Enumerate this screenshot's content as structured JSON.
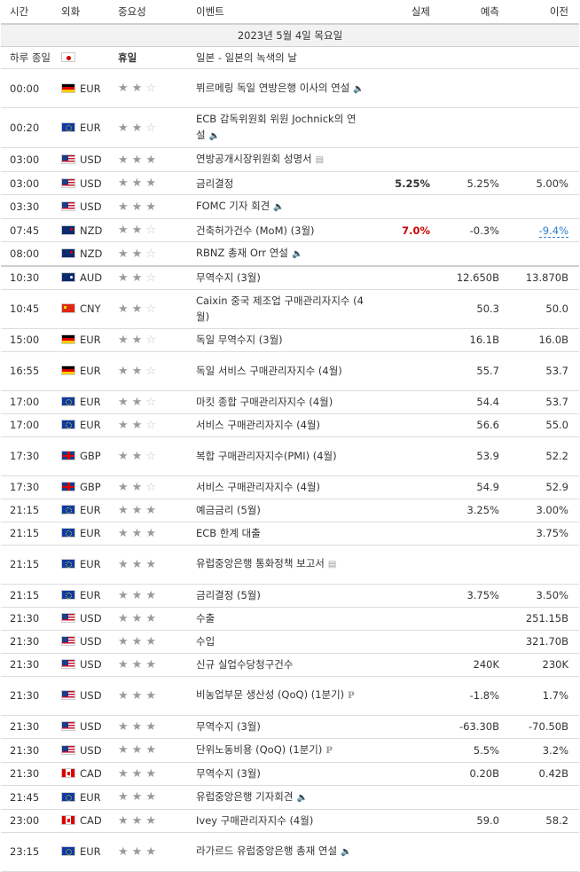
{
  "headers": {
    "time": "시간",
    "currency": "외화",
    "importance": "중요성",
    "event": "이벤트",
    "actual": "실제",
    "forecast": "예측",
    "previous": "이전"
  },
  "date_label": "2023년 5월 4일 목요일",
  "rows": [
    {
      "time": "하루 종일",
      "flag": "jp",
      "currency": "",
      "stars": 0,
      "holiday": "휴일",
      "event": "일본 - 일본의 녹색의 날",
      "icon": "",
      "actual": "",
      "actual_class": "",
      "forecast": "",
      "previous": "",
      "prev_class": "",
      "h": 25
    },
    {
      "time": "00:00",
      "flag": "de",
      "currency": "EUR",
      "stars": 2,
      "holiday": "",
      "event": "뷔르메링 독일 연방은행 이사의 연설",
      "icon": "speaker-icon",
      "actual": "",
      "actual_class": "",
      "forecast": "",
      "previous": "",
      "prev_class": "",
      "h": 44
    },
    {
      "time": "00:20",
      "flag": "eu",
      "currency": "EUR",
      "stars": 2,
      "holiday": "",
      "event": "ECB 감독위원회 위원 Jochnick의 연설",
      "icon": "speaker-icon",
      "actual": "",
      "actual_class": "",
      "forecast": "",
      "previous": "",
      "prev_class": "",
      "h": 44
    },
    {
      "time": "03:00",
      "flag": "us",
      "currency": "USD",
      "stars": 3,
      "holiday": "",
      "event": "연방공개시장위원회 성명서",
      "icon": "document-icon",
      "actual": "",
      "actual_class": "",
      "forecast": "",
      "previous": "",
      "prev_class": "",
      "h": 26
    },
    {
      "time": "03:00",
      "flag": "us",
      "currency": "USD",
      "stars": 3,
      "holiday": "",
      "event": "금리결정",
      "icon": "",
      "actual": "5.25%",
      "actual_class": "",
      "forecast": "5.25%",
      "previous": "5.00%",
      "prev_class": "",
      "h": 26
    },
    {
      "time": "03:30",
      "flag": "us",
      "currency": "USD",
      "stars": 3,
      "holiday": "",
      "event": "FOMC 기자 회견",
      "icon": "speaker-icon",
      "actual": "",
      "actual_class": "",
      "forecast": "",
      "previous": "",
      "prev_class": "",
      "h": 26
    },
    {
      "time": "07:45",
      "flag": "nz",
      "currency": "NZD",
      "stars": 2,
      "holiday": "",
      "event": "건축허가건수 (MoM) (3월)",
      "icon": "",
      "actual": "7.0%",
      "actual_class": "neg",
      "forecast": "-0.3%",
      "previous": "-9.4%",
      "prev_class": "prevrev",
      "h": 26
    },
    {
      "time": "08:00",
      "flag": "nz",
      "currency": "NZD",
      "stars": 2,
      "holiday": "",
      "event": "RBNZ 총재 Orr 연설",
      "icon": "speaker-icon",
      "actual": "",
      "actual_class": "",
      "forecast": "",
      "previous": "",
      "prev_class": "",
      "h": 26
    },
    {
      "time": "10:30",
      "flag": "au",
      "currency": "AUD",
      "stars": 2,
      "holiday": "",
      "event": "무역수지 (3월)",
      "icon": "",
      "actual": "",
      "actual_class": "",
      "forecast": "12.650B",
      "previous": "13.870B",
      "prev_class": "",
      "h": 26,
      "sep": true
    },
    {
      "time": "10:45",
      "flag": "cn",
      "currency": "CNY",
      "stars": 2,
      "holiday": "",
      "event": "Caixin 중국 제조업 구매관리자지수 (4월)",
      "icon": "",
      "actual": "",
      "actual_class": "",
      "forecast": "50.3",
      "previous": "50.0",
      "prev_class": "",
      "h": 44
    },
    {
      "time": "15:00",
      "flag": "de",
      "currency": "EUR",
      "stars": 2,
      "holiday": "",
      "event": "독일 무역수지 (3월)",
      "icon": "",
      "actual": "",
      "actual_class": "",
      "forecast": "16.1B",
      "previous": "16.0B",
      "prev_class": "",
      "h": 26
    },
    {
      "time": "16:55",
      "flag": "de",
      "currency": "EUR",
      "stars": 2,
      "holiday": "",
      "event": "독일 서비스 구매관리자지수 (4월)",
      "icon": "",
      "actual": "",
      "actual_class": "",
      "forecast": "55.7",
      "previous": "53.7",
      "prev_class": "",
      "h": 44
    },
    {
      "time": "17:00",
      "flag": "eu",
      "currency": "EUR",
      "stars": 2,
      "holiday": "",
      "event": "마킷 종합 구매관리자지수 (4월)",
      "icon": "",
      "actual": "",
      "actual_class": "",
      "forecast": "54.4",
      "previous": "53.7",
      "prev_class": "",
      "h": 26
    },
    {
      "time": "17:00",
      "flag": "eu",
      "currency": "EUR",
      "stars": 2,
      "holiday": "",
      "event": "서비스 구매관리자지수 (4월)",
      "icon": "",
      "actual": "",
      "actual_class": "",
      "forecast": "56.6",
      "previous": "55.0",
      "prev_class": "",
      "h": 26
    },
    {
      "time": "17:30",
      "flag": "gb",
      "currency": "GBP",
      "stars": 2,
      "holiday": "",
      "event": "복합 구매관리자지수(PMI) (4월)",
      "icon": "",
      "actual": "",
      "actual_class": "",
      "forecast": "53.9",
      "previous": "52.2",
      "prev_class": "",
      "h": 44
    },
    {
      "time": "17:30",
      "flag": "gb",
      "currency": "GBP",
      "stars": 2,
      "holiday": "",
      "event": "서비스 구매관리자지수 (4월)",
      "icon": "",
      "actual": "",
      "actual_class": "",
      "forecast": "54.9",
      "previous": "52.9",
      "prev_class": "",
      "h": 26
    },
    {
      "time": "21:15",
      "flag": "eu",
      "currency": "EUR",
      "stars": 3,
      "holiday": "",
      "event": "예금금리 (5월)",
      "icon": "",
      "actual": "",
      "actual_class": "",
      "forecast": "3.25%",
      "previous": "3.00%",
      "prev_class": "",
      "h": 26
    },
    {
      "time": "21:15",
      "flag": "eu",
      "currency": "EUR",
      "stars": 3,
      "holiday": "",
      "event": "ECB 한계 대출",
      "icon": "",
      "actual": "",
      "actual_class": "",
      "forecast": "",
      "previous": "3.75%",
      "prev_class": "",
      "h": 26
    },
    {
      "time": "21:15",
      "flag": "eu",
      "currency": "EUR",
      "stars": 3,
      "holiday": "",
      "event": "유럽중앙은행 통화정책 보고서",
      "icon": "document-icon",
      "actual": "",
      "actual_class": "",
      "forecast": "",
      "previous": "",
      "prev_class": "",
      "h": 44
    },
    {
      "time": "21:15",
      "flag": "eu",
      "currency": "EUR",
      "stars": 3,
      "holiday": "",
      "event": "금리결정 (5월)",
      "icon": "",
      "actual": "",
      "actual_class": "",
      "forecast": "3.75%",
      "previous": "3.50%",
      "prev_class": "",
      "h": 26
    },
    {
      "time": "21:30",
      "flag": "us",
      "currency": "USD",
      "stars": 3,
      "holiday": "",
      "event": "수출",
      "icon": "",
      "actual": "",
      "actual_class": "",
      "forecast": "",
      "previous": "251.15B",
      "prev_class": "",
      "h": 26
    },
    {
      "time": "21:30",
      "flag": "us",
      "currency": "USD",
      "stars": 3,
      "holiday": "",
      "event": "수입",
      "icon": "",
      "actual": "",
      "actual_class": "",
      "forecast": "",
      "previous": "321.70B",
      "prev_class": "",
      "h": 26
    },
    {
      "time": "21:30",
      "flag": "us",
      "currency": "USD",
      "stars": 3,
      "holiday": "",
      "event": "신규 실업수당청구건수",
      "icon": "",
      "actual": "",
      "actual_class": "",
      "forecast": "240K",
      "previous": "230K",
      "prev_class": "",
      "h": 26
    },
    {
      "time": "21:30",
      "flag": "us",
      "currency": "USD",
      "stars": 3,
      "holiday": "",
      "event": "비농업부문 생산성 (QoQ) (1분기)",
      "icon": "preliminary-icon",
      "actual": "",
      "actual_class": "",
      "forecast": "-1.8%",
      "previous": "1.7%",
      "prev_class": "",
      "h": 44
    },
    {
      "time": "21:30",
      "flag": "us",
      "currency": "USD",
      "stars": 3,
      "holiday": "",
      "event": "무역수지 (3월)",
      "icon": "",
      "actual": "",
      "actual_class": "",
      "forecast": "-63.30B",
      "previous": "-70.50B",
      "prev_class": "",
      "h": 26
    },
    {
      "time": "21:30",
      "flag": "us",
      "currency": "USD",
      "stars": 3,
      "holiday": "",
      "event": "단위노동비용 (QoQ) (1분기)",
      "icon": "preliminary-icon",
      "actual": "",
      "actual_class": "",
      "forecast": "5.5%",
      "previous": "3.2%",
      "prev_class": "",
      "h": 26
    },
    {
      "time": "21:30",
      "flag": "ca",
      "currency": "CAD",
      "stars": 3,
      "holiday": "",
      "event": "무역수지 (3월)",
      "icon": "",
      "actual": "",
      "actual_class": "",
      "forecast": "0.20B",
      "previous": "0.42B",
      "prev_class": "",
      "h": 26
    },
    {
      "time": "21:45",
      "flag": "eu",
      "currency": "EUR",
      "stars": 3,
      "holiday": "",
      "event": "유럽중앙은행 기자회견",
      "icon": "speaker-icon",
      "actual": "",
      "actual_class": "",
      "forecast": "",
      "previous": "",
      "prev_class": "",
      "h": 26
    },
    {
      "time": "23:00",
      "flag": "ca",
      "currency": "CAD",
      "stars": 3,
      "holiday": "",
      "event": "Ivey 구매관리자지수 (4월)",
      "icon": "",
      "actual": "",
      "actual_class": "",
      "forecast": "59.0",
      "previous": "58.2",
      "prev_class": "",
      "h": 26
    },
    {
      "time": "23:15",
      "flag": "eu",
      "currency": "EUR",
      "stars": 3,
      "holiday": "",
      "event": "라가르드 유럽중앙은행 총재 연설",
      "icon": "speaker-icon",
      "actual": "",
      "actual_class": "",
      "forecast": "",
      "previous": "",
      "prev_class": "",
      "h": 44
    }
  ]
}
